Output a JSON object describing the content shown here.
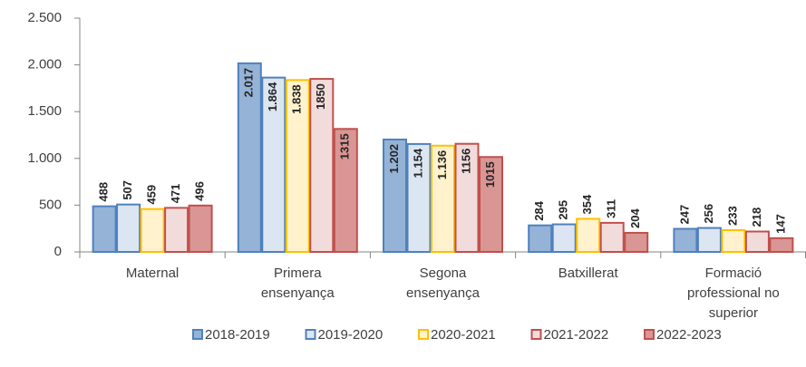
{
  "chart_data": {
    "type": "bar",
    "categories": [
      "Maternal",
      "Primera ensenyança",
      "Segona ensenyança",
      "Batxillerat",
      "Formació professional no superior"
    ],
    "series": [
      {
        "name": "2018-2019",
        "color": "#95b3d7",
        "edgecolor": "#4f81bd",
        "values": [
          488,
          2017,
          1202,
          284,
          247
        ],
        "value_labels": [
          "488",
          "2.017",
          "1.202",
          "284",
          "247"
        ]
      },
      {
        "name": "2019-2020",
        "color": "#dce6f2",
        "edgecolor": "#4f81bd",
        "values": [
          507,
          1864,
          1154,
          295,
          256
        ],
        "value_labels": [
          "507",
          "1.864",
          "1.154",
          "295",
          "256"
        ]
      },
      {
        "name": "2020-2021",
        "color": "#fff2cc",
        "edgecolor": "#ffc000",
        "values": [
          459,
          1838,
          1136,
          354,
          233
        ],
        "value_labels": [
          "459",
          "1.838",
          "1.136",
          "354",
          "233"
        ]
      },
      {
        "name": "2021-2022",
        "color": "#f2dcdb",
        "edgecolor": "#c0504d",
        "values": [
          471,
          1850,
          1156,
          311,
          218
        ],
        "value_labels": [
          "471",
          "1850",
          "1156",
          "311",
          "218"
        ]
      },
      {
        "name": "2022-2023",
        "color": "#d99694",
        "edgecolor": "#c0504d",
        "values": [
          496,
          1315,
          1015,
          204,
          147
        ],
        "value_labels": [
          "496",
          "1315",
          "1015",
          "204",
          "147"
        ]
      }
    ],
    "ylim": [
      0,
      2500
    ],
    "yticks": [
      0,
      500,
      {
        "value": 1000,
        "label": "1.000"
      },
      {
        "value": 1500,
        "label": "1.500"
      },
      {
        "value": 2000,
        "label": "2.000"
      },
      {
        "value": 2500,
        "label": "2.500"
      }
    ],
    "grid": false,
    "legend": "bottom"
  }
}
